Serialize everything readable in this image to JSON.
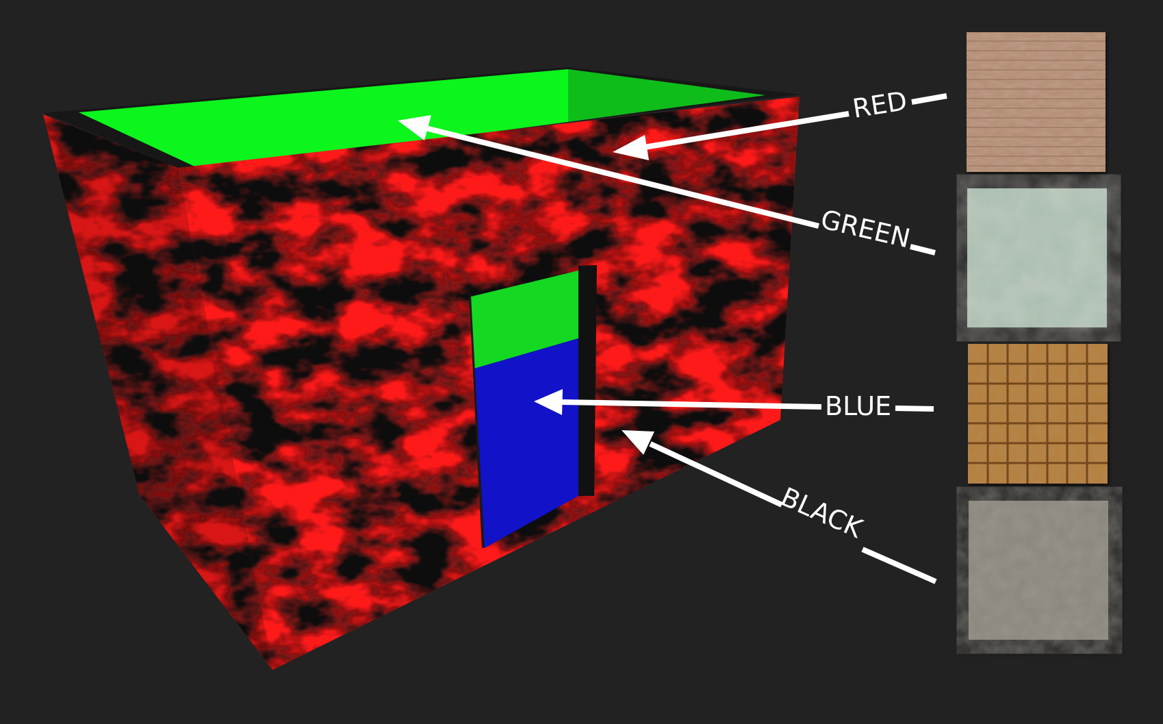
{
  "background_color": "#222222",
  "mask_colors": {
    "red": "#ff1a1a",
    "green": "#0cf51c",
    "blue": "#1212c8",
    "black": "#111111"
  },
  "labels": [
    {
      "key": "red",
      "text": "RED"
    },
    {
      "key": "green",
      "text": "GREEN"
    },
    {
      "key": "blue",
      "text": "BLUE"
    },
    {
      "key": "black",
      "text": "BLACK"
    }
  ],
  "swatches": [
    {
      "key": "red",
      "icon": "brick-texture-icon",
      "color": "#b28a6f"
    },
    {
      "key": "green",
      "icon": "plaster-texture-icon",
      "color": "#a7bdaf"
    },
    {
      "key": "blue",
      "icon": "tile-texture-icon",
      "color": "#b57e3e"
    },
    {
      "key": "black",
      "icon": "concrete-texture-icon",
      "color": "#8a857c"
    }
  ]
}
